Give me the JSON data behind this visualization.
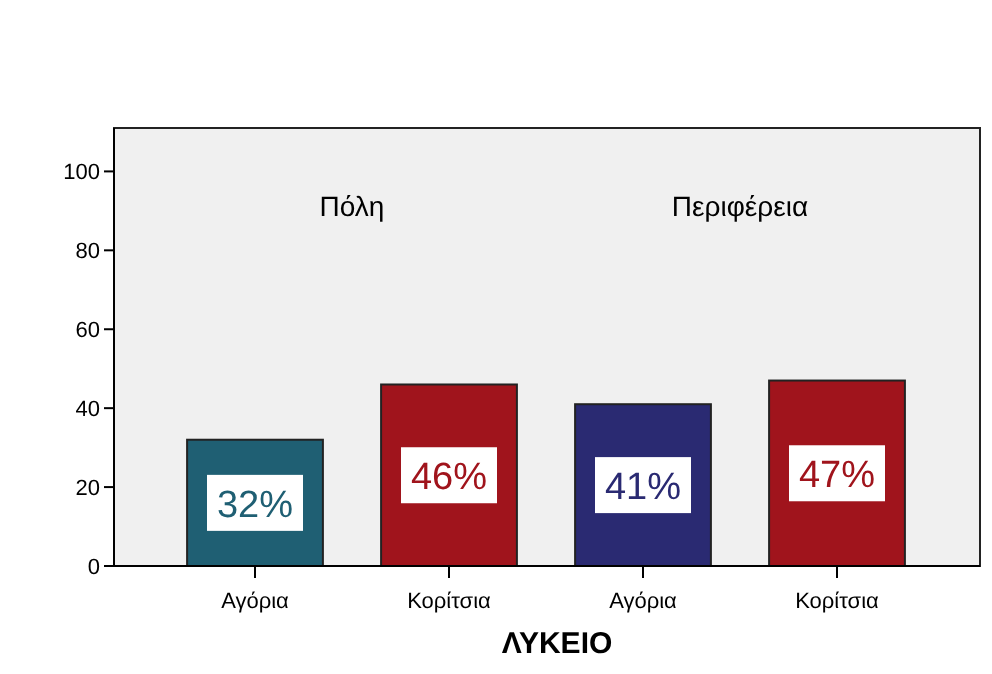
{
  "chart_data": {
    "type": "bar",
    "xlabel": "ΛΥΚΕΙΟ",
    "categories": [
      "Αγόρια",
      "Κορίτσια",
      "Αγόρια",
      "Κορίτσια"
    ],
    "values": [
      32,
      46,
      41,
      47
    ],
    "colors": [
      "#1f5f73",
      "#a0141c",
      "#2a2a72",
      "#a0141c"
    ],
    "value_labels": [
      "32%",
      "46%",
      "41%",
      "47%"
    ],
    "ylim": [
      0,
      111
    ],
    "yticks": [
      0,
      20,
      40,
      60,
      80,
      100
    ],
    "annotations": [
      "Πόλη",
      "Περιφέρεια"
    ]
  }
}
